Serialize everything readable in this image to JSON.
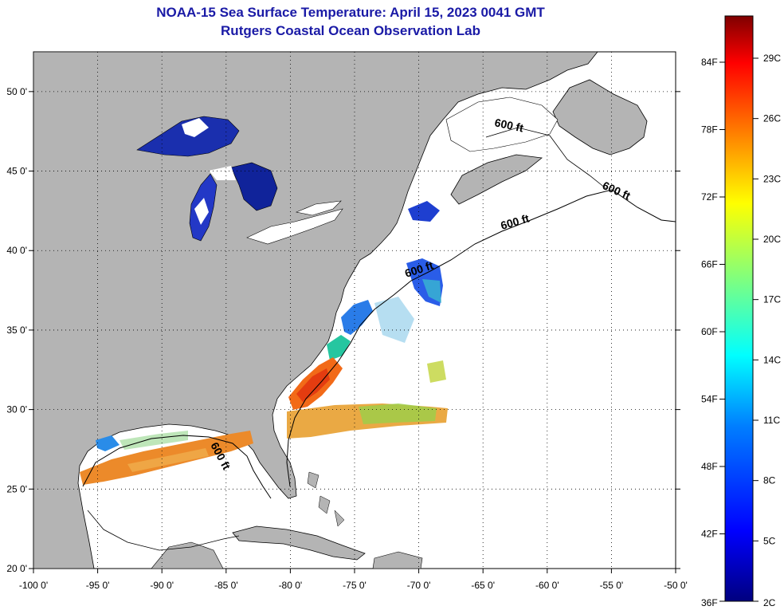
{
  "header": {
    "title": "NOAA-15 Sea Surface Temperature:  April 15, 2023 0041 GMT",
    "subtitle": "Rutgers Coastal Ocean Observation Lab"
  },
  "map": {
    "lon_range": [
      -100,
      -50
    ],
    "lat_range": [
      20,
      52.5
    ],
    "lon_ticks": [
      -100,
      -95,
      -90,
      -85,
      -80,
      -75,
      -70,
      -65,
      -60,
      -55,
      -50
    ],
    "lon_tick_labels": [
      "-100 0'",
      "-95 0'",
      "-90 0'",
      "-85 0'",
      "-80 0'",
      "-75 0'",
      "-70 0'",
      "-65 0'",
      "-60 0'",
      "-55 0'",
      "-50 0'"
    ],
    "lat_ticks": [
      50,
      45,
      40,
      35,
      30,
      25,
      20
    ],
    "lat_tick_labels": [
      "50 0'",
      "45 0'",
      "40 0'",
      "35 0'",
      "30 0'",
      "25 0'",
      "20 0'"
    ],
    "grid": "dotted",
    "land_color": "#b4b4b4",
    "ocean_color": "#ffffff",
    "isobath_label": "600 ft"
  },
  "colorbar": {
    "fahrenheit_labels": [
      "84F",
      "78F",
      "72F",
      "66F",
      "60F",
      "54F",
      "48F",
      "42F",
      "36F"
    ],
    "celsius_labels": [
      "29C",
      "26C",
      "23C",
      "20C",
      "17C",
      "14C",
      "11C",
      "8C",
      "5C",
      "2C"
    ],
    "colors": [
      "#00007f",
      "#0000ff",
      "#007fff",
      "#00ffff",
      "#7fff7f",
      "#ffff00",
      "#ff7f00",
      "#ff0000",
      "#7f0000"
    ]
  }
}
